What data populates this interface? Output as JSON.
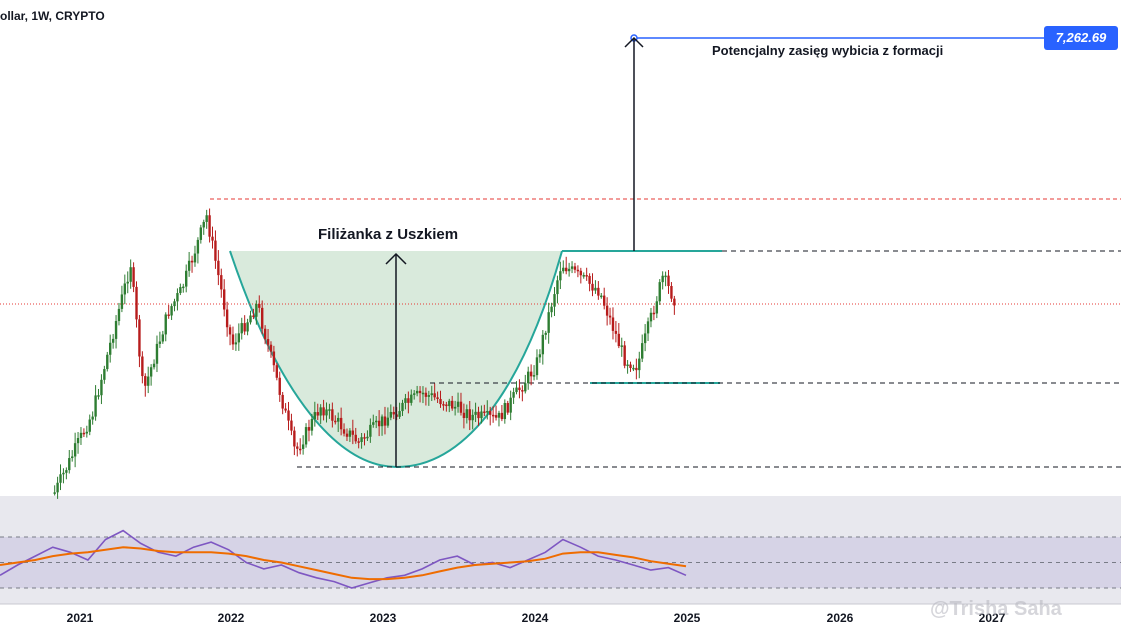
{
  "header": {
    "symbol_text": "ollar, 1W, CRYPTO"
  },
  "annotations": {
    "target_label": "Potencjalny zasięg wybicia z formacji",
    "pattern_label": "Filiżanka z Uszkiem",
    "price_tag": "7,262.69"
  },
  "watermark": "@Trisha Saha",
  "colors": {
    "cup_fill": "#d5e8d8",
    "cup_line": "#26a69a",
    "resistance": "#e53935",
    "rsi_line": "#7e57c2",
    "rsi_ma": "#ef6c00",
    "price_tag": "#2962ff",
    "candle_up": "#2e7d32",
    "candle_down": "#b71c1c"
  },
  "chart_data": [
    {
      "type": "candlestick",
      "interval": "1W",
      "title": "",
      "x_ticks": [
        "2021",
        "2022",
        "2023",
        "2024",
        "2025",
        "2026",
        "2027"
      ],
      "price_levels": [
        {
          "name": "breakout target",
          "value": 7262.69
        },
        {
          "name": "all-time high",
          "value": 4850
        },
        {
          "name": "cup rim / resistance",
          "value": 4090
        },
        {
          "name": "current price",
          "value": 3300
        },
        {
          "name": "handle low / support",
          "value": 2150
        },
        {
          "name": "cup bottom",
          "value": 880
        }
      ],
      "close_path": [
        {
          "x": "2020-11",
          "y": 500
        },
        {
          "x": "2021-01",
          "y": 1300
        },
        {
          "x": "2021-02",
          "y": 1700
        },
        {
          "x": "2021-05",
          "y": 3900
        },
        {
          "x": "2021-06",
          "y": 2000
        },
        {
          "x": "2021-08",
          "y": 3200
        },
        {
          "x": "2021-09",
          "y": 3500
        },
        {
          "x": "2021-11",
          "y": 4600
        },
        {
          "x": "2022-01",
          "y": 2700
        },
        {
          "x": "2022-03",
          "y": 3300
        },
        {
          "x": "2022-06",
          "y": 1100
        },
        {
          "x": "2022-08",
          "y": 1800
        },
        {
          "x": "2022-11",
          "y": 1250
        },
        {
          "x": "2023-01",
          "y": 1600
        },
        {
          "x": "2023-04",
          "y": 2000
        },
        {
          "x": "2023-06",
          "y": 1850
        },
        {
          "x": "2023-08",
          "y": 1650
        },
        {
          "x": "2023-10",
          "y": 1600
        },
        {
          "x": "2024-01",
          "y": 2400
        },
        {
          "x": "2024-03",
          "y": 3900
        },
        {
          "x": "2024-06",
          "y": 3500
        },
        {
          "x": "2024-08",
          "y": 2500
        },
        {
          "x": "2024-09",
          "y": 2400
        },
        {
          "x": "2024-11",
          "y": 3700
        },
        {
          "x": "2024-12",
          "y": 3350
        }
      ]
    },
    {
      "type": "line",
      "title": "",
      "series": [
        {
          "name": "",
          "values": [
            40,
            48,
            55,
            62,
            58,
            52,
            68,
            75,
            65,
            58,
            55,
            62,
            66,
            60,
            50,
            45,
            48,
            42,
            38,
            35,
            30,
            34,
            38,
            40,
            45,
            52,
            55,
            48,
            50,
            46,
            52,
            58,
            68,
            62,
            55,
            52,
            48,
            44,
            46,
            40
          ]
        }
      ],
      "ma_values": [
        48,
        50,
        52,
        55,
        57,
        58,
        60,
        62,
        61,
        59,
        58,
        58,
        58,
        57,
        55,
        52,
        50,
        47,
        44,
        41,
        38,
        37,
        37,
        38,
        40,
        43,
        46,
        48,
        49,
        50,
        51,
        53,
        57,
        58,
        58,
        56,
        54,
        51,
        49,
        47
      ],
      "levels": [
        70,
        50,
        30
      ]
    }
  ]
}
